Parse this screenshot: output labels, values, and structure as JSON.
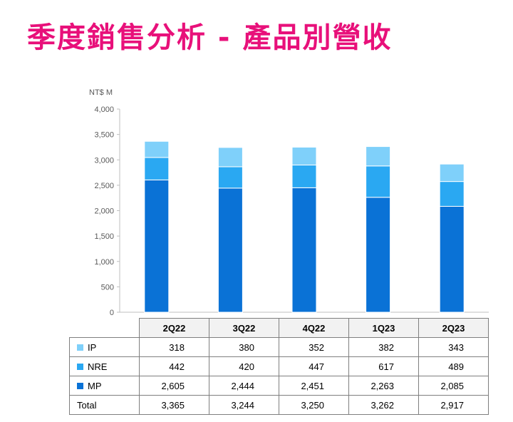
{
  "title": "季度銷售分析 - 產品別營收",
  "chart_data": {
    "type": "bar",
    "stacked": true,
    "unit_label": "NT$ M",
    "categories": [
      "2Q22",
      "3Q22",
      "4Q22",
      "1Q23",
      "2Q23"
    ],
    "ylim": [
      0,
      4000
    ],
    "yticks": [
      0,
      500,
      1000,
      1500,
      2000,
      2500,
      3000,
      3500,
      4000
    ],
    "ytick_labels": [
      "0",
      "500",
      "1,000",
      "1,500",
      "2,000",
      "2,500",
      "3,000",
      "3,500",
      "4,000"
    ],
    "series": [
      {
        "name": "MP",
        "color": "#0a72d6",
        "values": [
          2605,
          2444,
          2451,
          2263,
          2085
        ],
        "labels": [
          "2,605",
          "2,444",
          "2,451",
          "2,263",
          "2,085"
        ]
      },
      {
        "name": "NRE",
        "color": "#2aa8f2",
        "values": [
          442,
          420,
          447,
          617,
          489
        ],
        "labels": [
          "442",
          "420",
          "447",
          "617",
          "489"
        ]
      },
      {
        "name": "IP",
        "color": "#7fd0fa",
        "values": [
          318,
          380,
          352,
          382,
          343
        ],
        "labels": [
          "318",
          "380",
          "352",
          "382",
          "343"
        ]
      }
    ],
    "totals": {
      "name": "Total",
      "labels": [
        "3,365",
        "3,244",
        "3,250",
        "3,262",
        "2,917"
      ]
    },
    "table_row_order": [
      "IP",
      "NRE",
      "MP"
    ],
    "grid": false,
    "legend": "data-table"
  }
}
